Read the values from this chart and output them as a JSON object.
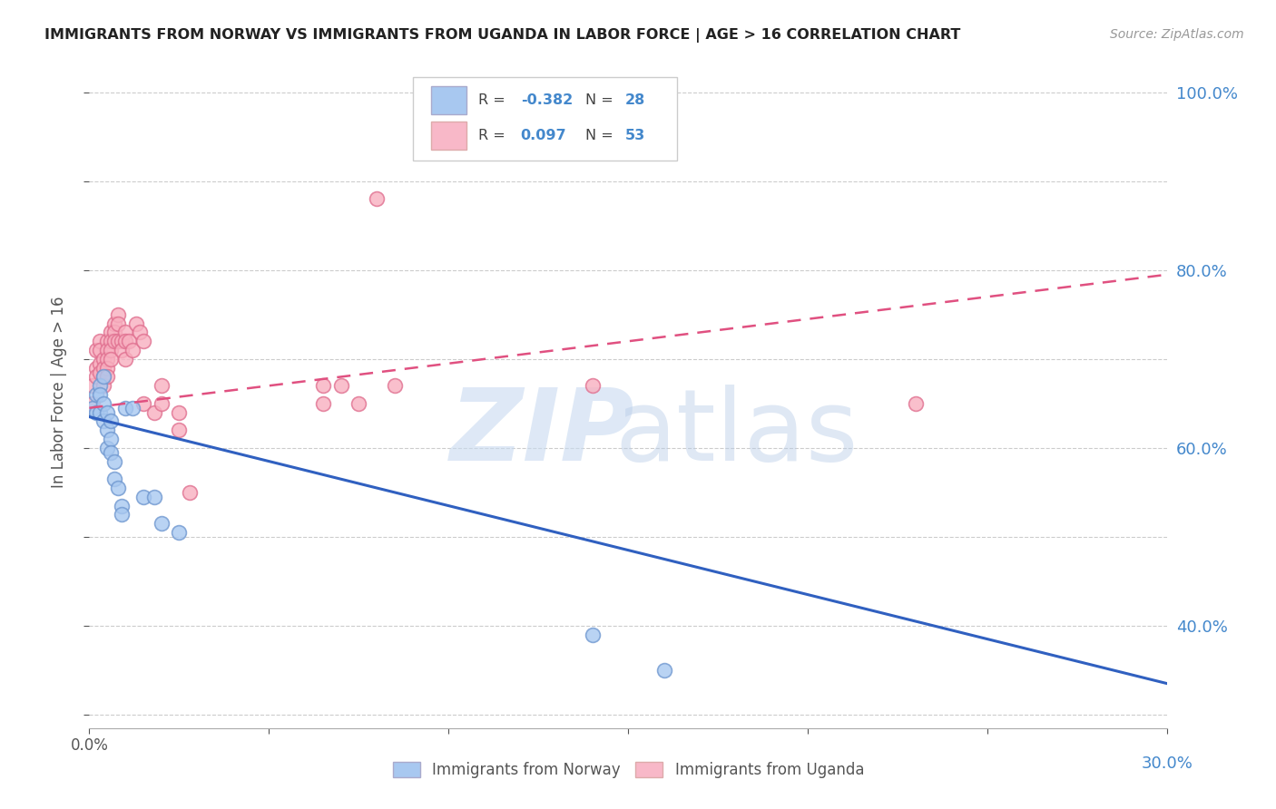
{
  "title": "IMMIGRANTS FROM NORWAY VS IMMIGRANTS FROM UGANDA IN LABOR FORCE | AGE > 16 CORRELATION CHART",
  "source": "Source: ZipAtlas.com",
  "ylabel": "In Labor Force | Age > 16",
  "xlim": [
    0.0,
    0.3
  ],
  "ylim": [
    0.285,
    1.04
  ],
  "xticks": [
    0.0,
    0.05,
    0.1,
    0.15,
    0.2,
    0.25,
    0.3
  ],
  "right_yticks": [
    0.4,
    0.6,
    0.8,
    1.0
  ],
  "right_yticklabels": [
    "40.0%",
    "60.0%",
    "80.0%",
    "100.0%"
  ],
  "norway_color": "#a8c8f0",
  "uganda_color": "#f8b0c0",
  "norway_edge": "#7098d0",
  "uganda_edge": "#e07090",
  "norway_R": -0.382,
  "norway_N": 28,
  "uganda_R": 0.097,
  "uganda_N": 53,
  "norway_x": [
    0.001,
    0.002,
    0.002,
    0.003,
    0.003,
    0.003,
    0.004,
    0.004,
    0.004,
    0.005,
    0.005,
    0.005,
    0.006,
    0.006,
    0.006,
    0.007,
    0.007,
    0.008,
    0.009,
    0.009,
    0.01,
    0.012,
    0.015,
    0.018,
    0.02,
    0.025,
    0.14,
    0.16
  ],
  "norway_y": [
    0.645,
    0.64,
    0.66,
    0.67,
    0.66,
    0.64,
    0.68,
    0.65,
    0.63,
    0.64,
    0.62,
    0.6,
    0.63,
    0.61,
    0.595,
    0.585,
    0.565,
    0.555,
    0.535,
    0.525,
    0.645,
    0.645,
    0.545,
    0.545,
    0.515,
    0.505,
    0.39,
    0.35
  ],
  "uganda_x": [
    0.001,
    0.001,
    0.002,
    0.002,
    0.002,
    0.003,
    0.003,
    0.003,
    0.003,
    0.004,
    0.004,
    0.004,
    0.004,
    0.005,
    0.005,
    0.005,
    0.005,
    0.005,
    0.006,
    0.006,
    0.006,
    0.006,
    0.007,
    0.007,
    0.007,
    0.008,
    0.008,
    0.008,
    0.009,
    0.009,
    0.01,
    0.01,
    0.01,
    0.011,
    0.012,
    0.013,
    0.014,
    0.015,
    0.015,
    0.018,
    0.02,
    0.02,
    0.025,
    0.025,
    0.028,
    0.065,
    0.065,
    0.07,
    0.075,
    0.08,
    0.085,
    0.14,
    0.23
  ],
  "uganda_y": [
    0.65,
    0.67,
    0.69,
    0.71,
    0.68,
    0.72,
    0.71,
    0.695,
    0.685,
    0.7,
    0.69,
    0.68,
    0.67,
    0.72,
    0.71,
    0.7,
    0.69,
    0.68,
    0.73,
    0.72,
    0.71,
    0.7,
    0.74,
    0.73,
    0.72,
    0.75,
    0.74,
    0.72,
    0.72,
    0.71,
    0.73,
    0.72,
    0.7,
    0.72,
    0.71,
    0.74,
    0.73,
    0.72,
    0.65,
    0.64,
    0.67,
    0.65,
    0.64,
    0.62,
    0.55,
    0.67,
    0.65,
    0.67,
    0.65,
    0.88,
    0.67,
    0.67,
    0.65
  ],
  "legend_labels": [
    "Immigrants from Norway",
    "Immigrants from Uganda"
  ],
  "legend_norway_color": "#a8c8f0",
  "legend_uganda_color": "#f8b8c8",
  "watermark_zip_color": "#c8daf0",
  "watermark_atlas_color": "#b8cce8",
  "background_color": "#ffffff",
  "grid_color": "#cccccc",
  "norway_line_color": "#3060c0",
  "uganda_line_color": "#e05080",
  "norway_line_intercept": 0.635,
  "norway_line_slope": -1.0,
  "uganda_line_intercept": 0.645,
  "uganda_line_slope": 0.5
}
